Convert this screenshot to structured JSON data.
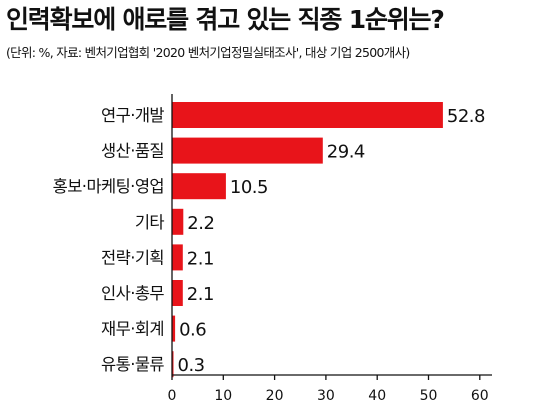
{
  "chart_data": {
    "type": "bar",
    "orientation": "horizontal",
    "title": "인력확보에 애로를 겪고 있는 직종 1순위는?",
    "subtitle": "(단위: %, 자료: 벤처기업협회 '2020 벤처기업정밀실태조사', 대상 기업 2500개사)",
    "categories": [
      "연구·개발",
      "생산·품질",
      "홍보·마케팅·영업",
      "기타",
      "전략·기획",
      "인사·총무",
      "재무·회계",
      "유통·물류"
    ],
    "values": [
      52.8,
      29.4,
      10.5,
      2.2,
      2.1,
      2.1,
      0.6,
      0.3
    ],
    "value_labels": [
      "52.8",
      "29.4",
      "10.5",
      "2.2",
      "2.1",
      "2.1",
      "0.6",
      "0.3"
    ],
    "xlim": [
      0,
      60
    ],
    "xticks": [
      "0",
      "10",
      "20",
      "30",
      "40",
      "50",
      "60"
    ],
    "grid": false,
    "legend": "none",
    "bar_color": "#e8141a",
    "background_color": "#ffffff"
  }
}
